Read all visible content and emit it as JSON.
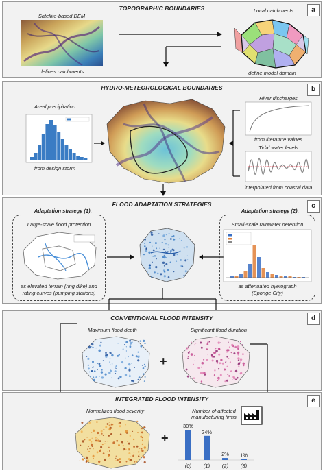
{
  "panel_a": {
    "title": "TOPOGRAPHIC BOUNDARIES",
    "badge": "a",
    "dem_label": "Satellite-based DEM",
    "dem_caption": "defines catchments",
    "catch_label": "Local catchments",
    "catch_caption": "define model domain"
  },
  "panel_b": {
    "title": "HYDRO-METEOROLOGICAL BOUNDARIES",
    "badge": "b",
    "precip_label": "Areal precipitation",
    "precip_caption": "from design storm",
    "river_label": "River discharges",
    "river_caption": "from literature values",
    "tidal_label": "Tidal water levels",
    "tidal_caption": "interpolated from coastal data"
  },
  "panel_c": {
    "title": "FLOOD ADAPTATION STRATEGIES",
    "badge": "c",
    "strategy1_title": "Adaptation strategy (1):",
    "strategy1_label": "Large-scale flood protection",
    "strategy1_caption1": "as elevated terrain (ring dike) and",
    "strategy1_caption2": "rating curves (pumping stations)",
    "strategy2_title": "Adaptation strategy (2):",
    "strategy2_label": "Small-scale rainwater detention",
    "strategy2_caption1": "as attenuated hyetograph",
    "strategy2_caption2": "(Sponge City)"
  },
  "panel_d": {
    "title": "CONVENTIONAL FLOOD INTENSITY",
    "badge": "d",
    "depth_label": "Maximum flood depth",
    "duration_label": "Significant flood duration",
    "plus": "+"
  },
  "panel_e": {
    "title": "INTEGRATED FLOOD INTENSITY",
    "badge": "e",
    "severity_label": "Normalized flood severity",
    "firms_label1": "Number of affected",
    "firms_label2": "manufacturing firms",
    "plus": "+",
    "factory_icon": "factory-icon"
  },
  "chart_data": {
    "type": "bar",
    "categories": [
      "(0)",
      "(1)",
      "(2)",
      "(3)"
    ],
    "values": [
      30,
      24,
      2,
      1
    ],
    "value_labels": [
      "30%",
      "24%",
      "2%",
      "1%"
    ],
    "color": "#3a6fc4"
  },
  "colors": {
    "panel_bg": "#f2f2f2",
    "bar": "#3a6fc4",
    "dem_high": "#8a5a3a",
    "dem_low": "#3b7fb8"
  }
}
